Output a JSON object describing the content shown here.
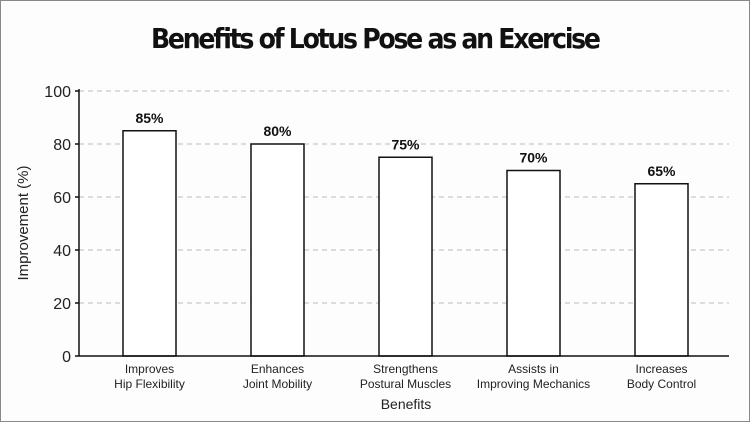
{
  "chart_data": {
    "type": "bar",
    "title": "Benefits of Lotus Pose as an Exercise",
    "xlabel": "Benefits",
    "ylabel": "Improvement (%)",
    "categories": [
      [
        "Improves",
        "Hip Flexibility"
      ],
      [
        "Enhances",
        "Joint Mobility"
      ],
      [
        "Strengthens",
        "Postural Muscles"
      ],
      [
        "Assists in",
        "Improving Mechanics"
      ],
      [
        "Increases",
        "Body Control"
      ]
    ],
    "values": [
      85,
      80,
      75,
      70,
      65
    ],
    "data_labels": [
      "85%",
      "80%",
      "75%",
      "70%",
      "65%"
    ],
    "ylim": [
      0,
      100
    ],
    "yticks": [
      0,
      20,
      40,
      60,
      80,
      100
    ],
    "grid": true,
    "colors": {
      "bar_fill": "#ffffff",
      "bar_stroke": "#111111",
      "grid": "#bbbbbb"
    }
  }
}
